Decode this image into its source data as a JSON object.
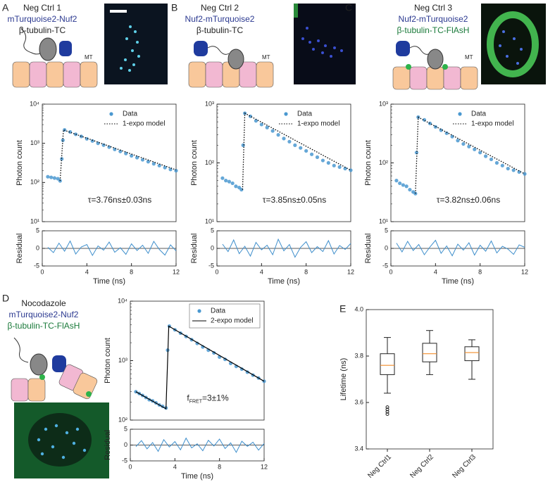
{
  "panels": [
    {
      "label": "A",
      "tag": "MT",
      "lines": [
        {
          "text": "Neg Ctrl 1",
          "color": "#222222"
        },
        {
          "text": "mTurquoise2-Nuf2",
          "color": "#2b3990"
        },
        {
          "text": "β-tubulin-TC",
          "color": "#222222"
        }
      ]
    },
    {
      "label": "B",
      "tag": "MT",
      "lines": [
        {
          "text": "Neg Ctrl 2",
          "color": "#222222"
        },
        {
          "text": "Nuf2-mTurquoise2",
          "color": "#2b3990"
        },
        {
          "text": "β-tubulin-TC",
          "color": "#222222"
        }
      ]
    },
    {
      "label": "C",
      "tag": "MT",
      "lines": [
        {
          "text": "Neg Ctrl 3",
          "color": "#222222"
        },
        {
          "text": "Nuf2-mTurquoise2",
          "color": "#2b3990"
        },
        {
          "text": "β-tubulin-TC-FlAsH",
          "color": "#1a7a3a"
        }
      ]
    },
    {
      "label": "D",
      "lines": [
        {
          "text": "Nocodazole",
          "color": "#222222"
        },
        {
          "text": "mTurquoise2-Nuf2",
          "color": "#2b3990"
        },
        {
          "text": "β-tubulin-TC-FlAsH",
          "color": "#1a7a3a"
        }
      ]
    },
    {
      "label": "E"
    }
  ],
  "chart_data": [
    {
      "type": "scatter",
      "log_y": true,
      "ylabel": "Photon count",
      "xlim": [
        0,
        12
      ],
      "ylim": [
        10,
        10000
      ],
      "yticks": [
        {
          "value": 10,
          "label": "10¹"
        },
        {
          "value": 100,
          "label": "10²"
        },
        {
          "value": 1000,
          "label": "10³"
        },
        {
          "value": 10000,
          "label": "10⁴"
        }
      ],
      "annotation": "τ=3.76ns±0.03ns",
      "legend": "upper right",
      "series": [
        {
          "name": "Data",
          "color": "#4a98d0",
          "mode": "markers",
          "x": [
            0.5,
            0.8,
            1.1,
            1.4,
            1.6,
            1.75,
            1.85,
            2.0,
            2.5,
            3,
            3.5,
            4,
            4.5,
            5,
            5.5,
            6,
            6.5,
            7,
            7.5,
            8,
            8.5,
            9,
            9.5,
            10,
            10.5,
            11,
            11.5,
            12
          ],
          "values": [
            140,
            135,
            130,
            125,
            110,
            400,
            1200,
            2200,
            1950,
            1700,
            1500,
            1300,
            1150,
            1000,
            900,
            800,
            700,
            620,
            550,
            480,
            430,
            380,
            340,
            300,
            270,
            240,
            215,
            200
          ]
        },
        {
          "name": "1-expo model",
          "color": "#000000",
          "mode": "dotted",
          "x": [
            1.6,
            1.9,
            12
          ],
          "values": [
            110,
            2200,
            210
          ]
        }
      ]
    },
    {
      "type": "line",
      "xlabel": "Time (ns)",
      "ylabel": "Residual",
      "xlim": [
        0,
        12
      ],
      "ylim": [
        -5,
        5
      ],
      "xticks": [
        0,
        4,
        8,
        12
      ],
      "yticks": [
        -5,
        0,
        5
      ],
      "zero_line": true,
      "series": [
        {
          "color": "#3f8fcc",
          "x": [
            0.5,
            1,
            1.5,
            2,
            2.5,
            3,
            3.5,
            4,
            4.5,
            5,
            5.5,
            6,
            6.5,
            7,
            7.5,
            8,
            8.5,
            9,
            9.5,
            10,
            10.5,
            11,
            11.5,
            12
          ],
          "values": [
            0.3,
            -1.2,
            1.5,
            -0.8,
            2.1,
            -1.6,
            0.4,
            1.1,
            -2.0,
            0.7,
            -0.5,
            1.8,
            -1.1,
            0.2,
            -1.7,
            1.3,
            -0.6,
            0.9,
            -1.4,
            2.0,
            -0.3,
            -1.9,
            1.0,
            -0.7
          ]
        }
      ]
    },
    {
      "type": "scatter",
      "log_y": true,
      "ylabel": "Photon count",
      "xlim": [
        0,
        12
      ],
      "ylim": [
        10,
        1000
      ],
      "yticks": [
        {
          "value": 10,
          "label": "10¹"
        },
        {
          "value": 100,
          "label": "10²"
        },
        {
          "value": 1000,
          "label": "10³"
        }
      ],
      "annotation": "τ=3.85ns±0.05ns",
      "legend": "upper right",
      "series": [
        {
          "name": "Data",
          "color": "#4a98d0",
          "mode": "markers",
          "x": [
            0.5,
            0.8,
            1.1,
            1.4,
            1.7,
            2.0,
            2.2,
            2.35,
            2.5,
            3,
            3.5,
            4,
            4.5,
            5,
            5.5,
            6,
            6.5,
            7,
            7.5,
            8,
            8.5,
            9,
            9.5,
            10,
            10.5,
            11,
            11.5,
            12
          ],
          "values": [
            55,
            50,
            48,
            45,
            40,
            38,
            35,
            200,
            700,
            620,
            520,
            450,
            400,
            350,
            300,
            260,
            230,
            200,
            180,
            160,
            140,
            125,
            110,
            100,
            90,
            85,
            80,
            75
          ]
        },
        {
          "name": "1-expo model",
          "color": "#000000",
          "mode": "dotted",
          "x": [
            2.3,
            2.5,
            12
          ],
          "values": [
            35,
            700,
            75
          ]
        }
      ]
    },
    {
      "type": "line",
      "xlabel": "Time (ns)",
      "ylabel": "Residual",
      "xlim": [
        0,
        12
      ],
      "ylim": [
        -5,
        5
      ],
      "xticks": [
        0,
        4,
        8,
        12
      ],
      "yticks": [
        -5,
        0,
        5
      ],
      "zero_line": true,
      "series": [
        {
          "color": "#3f8fcc",
          "x": [
            0.5,
            1,
            1.5,
            2,
            2.5,
            3,
            3.5,
            4,
            4.5,
            5,
            5.5,
            6,
            6.5,
            7,
            7.5,
            8,
            8.5,
            9,
            9.5,
            10,
            10.5,
            11,
            11.5,
            12
          ],
          "values": [
            1.2,
            -0.9,
            2.4,
            -1.5,
            0.6,
            -2.2,
            1.7,
            -0.4,
            0.9,
            -1.8,
            2.6,
            -0.7,
            1.1,
            -2.5,
            0.3,
            1.9,
            -1.2,
            0.5,
            -0.9,
            2.2,
            -1.6,
            0.8,
            -0.3,
            1.4
          ]
        }
      ]
    },
    {
      "type": "scatter",
      "log_y": true,
      "ylabel": "Photon count",
      "xlim": [
        0,
        12
      ],
      "ylim": [
        10,
        1000
      ],
      "yticks": [
        {
          "value": 10,
          "label": "10¹"
        },
        {
          "value": 100,
          "label": "10²"
        },
        {
          "value": 1000,
          "label": "10³"
        }
      ],
      "annotation": "τ=3.82ns±0.06ns",
      "legend": "upper right",
      "series": [
        {
          "name": "Data",
          "color": "#4a98d0",
          "mode": "markers",
          "x": [
            0.5,
            0.8,
            1.1,
            1.4,
            1.7,
            2.0,
            2.2,
            2.3,
            2.45,
            3,
            3.5,
            4,
            4.5,
            5,
            5.5,
            6,
            6.5,
            7,
            7.5,
            8,
            8.5,
            9,
            9.5,
            10,
            10.5,
            11,
            11.5,
            12
          ],
          "values": [
            50,
            45,
            42,
            40,
            35,
            32,
            30,
            150,
            600,
            540,
            470,
            410,
            360,
            320,
            280,
            240,
            210,
            190,
            170,
            150,
            130,
            115,
            100,
            90,
            80,
            75,
            70,
            65
          ]
        },
        {
          "name": "1-expo model",
          "color": "#000000",
          "mode": "dotted",
          "x": [
            2.2,
            2.45,
            12
          ],
          "values": [
            30,
            600,
            65
          ]
        }
      ]
    },
    {
      "type": "line",
      "xlabel": "Time (ns)",
      "ylabel": "Residual",
      "xlim": [
        0,
        12
      ],
      "ylim": [
        -5,
        5
      ],
      "xticks": [
        0,
        4,
        8,
        12
      ],
      "yticks": [
        -5,
        0,
        5
      ],
      "zero_line": true,
      "series": [
        {
          "color": "#3f8fcc",
          "x": [
            0.5,
            1,
            1.5,
            2,
            2.5,
            3,
            3.5,
            4,
            4.5,
            5,
            5.5,
            6,
            6.5,
            7,
            7.5,
            8,
            8.5,
            9,
            9.5,
            10,
            10.5,
            11,
            11.5,
            12
          ],
          "values": [
            1.5,
            -1.0,
            2.0,
            -0.6,
            1.1,
            -1.8,
            0.4,
            2.3,
            -1.4,
            0.7,
            -2.1,
            1.2,
            -0.5,
            1.6,
            -1.9,
            0.9,
            -0.8,
            2.1,
            -1.3,
            0.6,
            -0.2,
            -1.7,
            1.0,
            0.3
          ]
        }
      ]
    },
    {
      "type": "scatter",
      "log_y": true,
      "ylabel": "Photon count",
      "xlim": [
        0,
        12
      ],
      "ylim": [
        100,
        10000
      ],
      "yticks": [
        {
          "value": 100,
          "label": "10²"
        },
        {
          "value": 1000,
          "label": "10³"
        },
        {
          "value": 10000,
          "label": "10⁴"
        }
      ],
      "annotation_parts": [
        "f",
        "FRET",
        "=3±1%"
      ],
      "legend": "upper right",
      "legend_frame": true,
      "series": [
        {
          "name": "Data",
          "color": "#4a98d0",
          "mode": "markers",
          "x": [
            0.5,
            0.8,
            1.1,
            1.4,
            1.7,
            2.0,
            2.3,
            2.6,
            2.9,
            3.2,
            3.35,
            3.5,
            4,
            4.5,
            5,
            5.5,
            6,
            6.5,
            7,
            7.5,
            8,
            8.5,
            9,
            9.5,
            10,
            10.5,
            11,
            11.5,
            12
          ],
          "values": [
            300,
            280,
            260,
            240,
            220,
            210,
            195,
            180,
            170,
            160,
            1500,
            3800,
            3300,
            2900,
            2550,
            2250,
            1950,
            1700,
            1500,
            1350,
            1150,
            1050,
            900,
            800,
            720,
            640,
            570,
            510,
            450
          ]
        },
        {
          "name": "2-expo model",
          "color": "#000000",
          "mode": "solid",
          "x": [
            0.5,
            3.2,
            3.45,
            12
          ],
          "values": [
            300,
            155,
            3800,
            450
          ]
        }
      ]
    },
    {
      "type": "line",
      "xlabel": "Time (ns)",
      "ylabel": "Residual",
      "xlim": [
        0,
        12
      ],
      "ylim": [
        -5,
        5
      ],
      "xticks": [
        0,
        4,
        8,
        12
      ],
      "yticks": [
        -5,
        0,
        5
      ],
      "zero_line": true,
      "series": [
        {
          "color": "#3f8fcc",
          "x": [
            0.5,
            1,
            1.5,
            2,
            2.5,
            3,
            3.5,
            4,
            4.5,
            5,
            5.5,
            6,
            6.5,
            7,
            7.5,
            8,
            8.5,
            9,
            9.5,
            10,
            10.5,
            11,
            11.5,
            12
          ],
          "values": [
            -0.5,
            1.4,
            -1.2,
            0.8,
            -2.0,
            1.7,
            -0.6,
            1.1,
            -1.5,
            2.2,
            -0.9,
            0.4,
            -1.8,
            1.5,
            -0.3,
            1.9,
            -1.1,
            0.7,
            -2.3,
            1.2,
            -0.4,
            0.9,
            -1.6,
            0.5
          ]
        }
      ]
    },
    {
      "type": "box",
      "ylabel": "Lifetime (ns)",
      "ylim": [
        3.4,
        4.0
      ],
      "yticks": [
        3.4,
        3.6,
        3.8,
        {
          "value": 4.0,
          "label": "4.0"
        }
      ],
      "categories": [
        "Neg Ctrl1",
        "Neg Ctrl2",
        "Neg Ctrl3"
      ],
      "median_color": "#f28e2b",
      "boxes": [
        {
          "whislo": 3.64,
          "q1": 3.72,
          "med": 3.76,
          "q3": 3.81,
          "whishi": 3.88,
          "fliers": [
            3.58,
            3.57,
            3.56,
            3.55
          ]
        },
        {
          "whislo": 3.72,
          "q1": 3.775,
          "med": 3.81,
          "q3": 3.855,
          "whishi": 3.91,
          "fliers": []
        },
        {
          "whislo": 3.7,
          "q1": 3.78,
          "med": 3.815,
          "q3": 3.84,
          "whishi": 3.87,
          "fliers": []
        }
      ]
    }
  ]
}
